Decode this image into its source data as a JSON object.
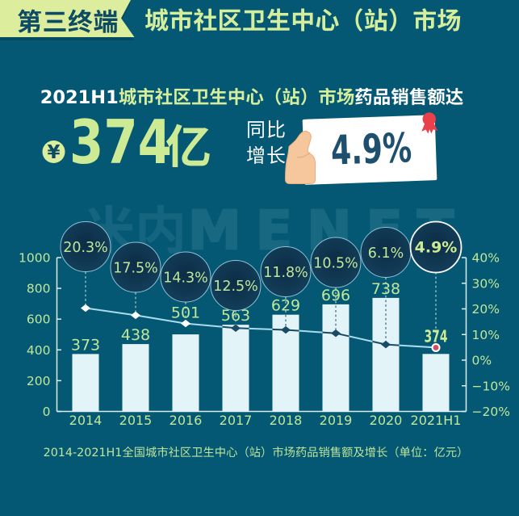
{
  "colors": {
    "background": "#055873",
    "ribbon": "#dcee9e",
    "light_green": "#d5ee9d",
    "kpi_green": "#cdeb94",
    "label_green": "#bfe79a",
    "dark_teal": "#0d4a63",
    "white": "#ffffff",
    "bar": "#e3f4f8",
    "card_text": "#1d4f6e",
    "red": "#e8414b",
    "marker_red": "#d94a62",
    "hand": "#f6c79d",
    "hand_line": "#e5ad7d",
    "axis": "#d8eef4",
    "line_light": "#a9dcec",
    "line_dark": "#1b4c66",
    "dash_light": "#cde9f0",
    "dash_dark": "#17455f",
    "bubble_in": "#0d2c45",
    "bubble_mid": "#123d59",
    "bubble_out": "#174663",
    "bubble_rim": "#8fc3d4",
    "watermark": "#a8dcf0"
  },
  "header": {
    "ribbon": "第三终端",
    "title": "城市社区卫生中心（站）市场"
  },
  "headline": {
    "prefix": "2021H1",
    "highlight": "城市社区卫生中心（站）市场",
    "suffix": "药品销售额达"
  },
  "kpi": {
    "currency": "¥",
    "value": "374",
    "unit": "亿"
  },
  "yoy": {
    "label_line1": "同比",
    "label_line2": "增长",
    "value": "4.9%"
  },
  "watermark": {
    "cjk": "米内",
    "latin": "MENET"
  },
  "caption": "2014-2021H1全国城市社区卫生中心（站）市场药品销售额及增长（单位：亿元）",
  "chart_data": {
    "type": "bar",
    "categories": [
      "2014",
      "2015",
      "2016",
      "2017",
      "2018",
      "2019",
      "2020",
      "2021H1"
    ],
    "series": [
      {
        "name": "药品销售额（亿元）",
        "type": "bar",
        "values": [
          373,
          438,
          501,
          563,
          629,
          696,
          738,
          374
        ]
      },
      {
        "name": "同比增长（%）",
        "type": "line",
        "values": [
          20.3,
          17.5,
          14.3,
          12.5,
          11.8,
          10.5,
          6.1,
          4.9
        ]
      }
    ],
    "bubble_labels": [
      "20.3%",
      "17.5%",
      "14.3%",
      "12.5%",
      "11.8%",
      "10.5%",
      "6.1%",
      "4.9%"
    ],
    "bubble_cy": [
      305.5,
      331,
      343,
      353.5,
      336.5,
      325,
      312.5,
      306
    ],
    "left_axis": {
      "min": 0,
      "max": 1000,
      "step": 200,
      "ticks": [
        "1000",
        "800",
        "600",
        "400",
        "200",
        "0"
      ]
    },
    "right_axis": {
      "min": -20,
      "max": 40,
      "step": 10,
      "ticks": [
        "40%",
        "30%",
        "20%",
        "10%",
        "0%",
        "−10%",
        "−20%"
      ]
    },
    "grid": false,
    "legend": null,
    "title": "2014-2021H1全国城市社区卫生中心（站）市场药品销售额及增长（单位：亿元）"
  }
}
